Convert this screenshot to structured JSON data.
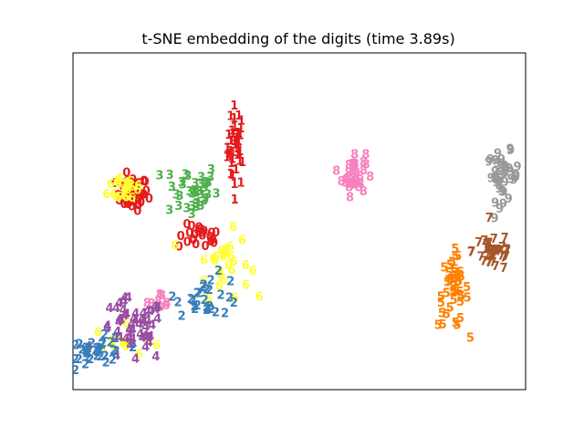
{
  "chart_data": {
    "type": "scatter",
    "title": "t-SNE embedding of the digits (time 3.89s)",
    "xlabel": "",
    "ylabel": "",
    "axes_visible": false,
    "grid": false,
    "legend": "none",
    "xlim": [
      0,
      100
    ],
    "ylim": [
      0,
      100
    ],
    "marker": "digit label text",
    "colors": {
      "0": "#e41a1c",
      "1": "#e41a1c",
      "2": "#377eb8",
      "3": "#4daf4a",
      "4": "#984ea3",
      "5": "#ff7f00",
      "6": "#ffff33",
      "7": "#a65628",
      "8": "#f781bf",
      "9": "#999999"
    },
    "clusters": [
      {
        "label": "1",
        "center": [
          36.0,
          71.0
        ],
        "spread": [
          1.6,
          10.0
        ],
        "count": 40,
        "color": "#e41a1c"
      },
      {
        "label": "0",
        "center": [
          13.0,
          57.0
        ],
        "spread": [
          3.0,
          4.2
        ],
        "count": 45,
        "color": "#e41a1c"
      },
      {
        "label": "0",
        "center": [
          28.0,
          44.0
        ],
        "spread": [
          4.0,
          3.0
        ],
        "count": 22,
        "color": "#e41a1c"
      },
      {
        "label": "3",
        "center": [
          26.0,
          58.0
        ],
        "spread": [
          5.0,
          7.0
        ],
        "count": 38,
        "color": "#4daf4a"
      },
      {
        "label": "6",
        "center": [
          12.0,
          59.0
        ],
        "spread": [
          3.5,
          4.0
        ],
        "count": 22,
        "color": "#ffff33"
      },
      {
        "label": "6",
        "center": [
          33.0,
          36.0
        ],
        "spread": [
          5.0,
          8.0
        ],
        "count": 30,
        "color": "#ffff33"
      },
      {
        "label": "6",
        "center": [
          12.0,
          13.0
        ],
        "spread": [
          6.0,
          4.0
        ],
        "count": 15,
        "color": "#ffff33"
      },
      {
        "label": "8",
        "center": [
          62.0,
          63.0
        ],
        "spread": [
          2.2,
          5.5
        ],
        "count": 38,
        "color": "#f781bf"
      },
      {
        "label": "8",
        "center": [
          20.0,
          25.0
        ],
        "spread": [
          3.0,
          2.0
        ],
        "count": 8,
        "color": "#f781bf"
      },
      {
        "label": "9",
        "center": [
          95.0,
          62.0
        ],
        "spread": [
          3.0,
          6.0
        ],
        "count": 40,
        "color": "#999999"
      },
      {
        "label": "5",
        "center": [
          84.0,
          28.0
        ],
        "spread": [
          2.8,
          9.0
        ],
        "count": 42,
        "color": "#ff7f00"
      },
      {
        "label": "7",
        "center": [
          93.0,
          40.0
        ],
        "spread": [
          4.0,
          5.0
        ],
        "count": 40,
        "color": "#a65628"
      },
      {
        "label": "4",
        "center": [
          13.0,
          16.0
        ],
        "spread": [
          6.0,
          8.0
        ],
        "count": 55,
        "color": "#984ea3"
      },
      {
        "label": "2",
        "center": [
          6.0,
          10.0
        ],
        "spread": [
          5.0,
          3.5
        ],
        "count": 35,
        "color": "#377eb8"
      },
      {
        "label": "2",
        "center": [
          30.0,
          27.0
        ],
        "spread": [
          6.0,
          5.0
        ],
        "count": 28,
        "color": "#377eb8"
      }
    ]
  }
}
